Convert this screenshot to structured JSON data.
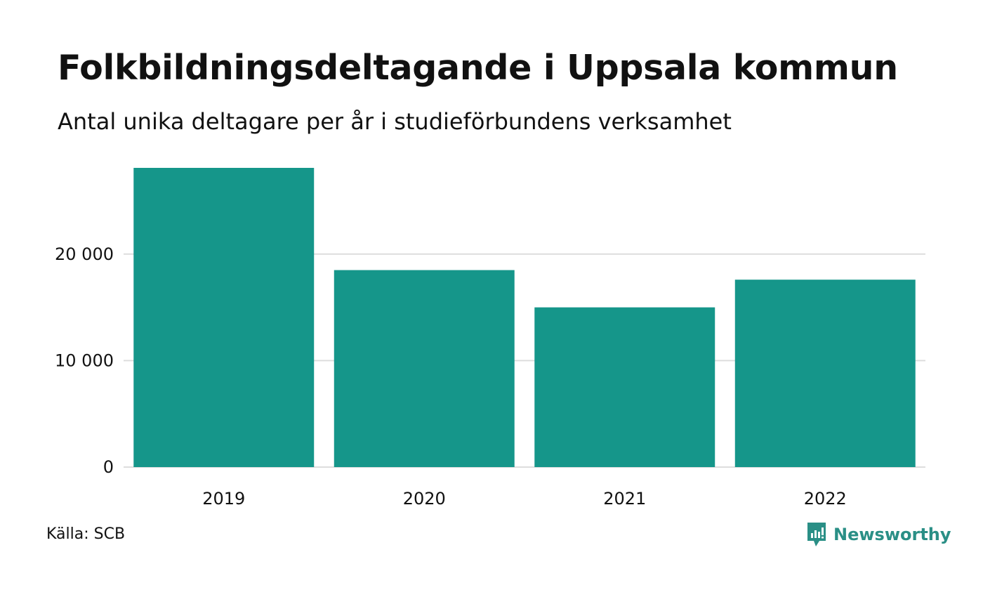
{
  "title": "Folkbildningsdeltagande i Uppsala kommun",
  "subtitle": "Antal unika deltagare per år i studieförbundens verksamhet",
  "source": "Källa: SCB",
  "brand": {
    "name": "Newsworthy",
    "icon": "newsworthy-logo-icon"
  },
  "colors": {
    "bar": "#15968a",
    "grid": "#dddddd",
    "brand": "#2a8f86",
    "text": "#111111"
  },
  "chart_data": {
    "type": "bar",
    "categories": [
      "2019",
      "2020",
      "2021",
      "2022"
    ],
    "values": [
      28100,
      18500,
      15000,
      17600
    ],
    "ylim": [
      0,
      28100
    ],
    "yticks": [
      0,
      10000,
      20000
    ],
    "ytick_labels": [
      "0",
      "10 000",
      "20 000"
    ],
    "grid": true,
    "xlabel": "",
    "ylabel": ""
  }
}
